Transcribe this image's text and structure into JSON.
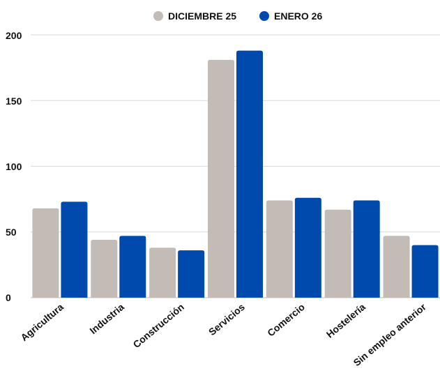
{
  "chart_data": {
    "type": "bar",
    "categories": [
      "Agricultura",
      "Industria",
      "Construcción",
      "Servicios",
      "Comercio",
      "Hostelería",
      "Sin empleo anterior"
    ],
    "series": [
      {
        "name": "DICIEMBRE 25",
        "color": "#c3bbb5",
        "values": [
          68,
          44,
          38,
          181,
          74,
          67,
          47
        ]
      },
      {
        "name": "ENERO 26",
        "color": "#004aad",
        "values": [
          73,
          47,
          36,
          188,
          76,
          74,
          40
        ]
      }
    ],
    "yticks": [
      "0",
      "50",
      "100",
      "150",
      "200"
    ],
    "ylim": [
      0,
      200
    ],
    "grid": true,
    "legend_position": "top-center"
  }
}
